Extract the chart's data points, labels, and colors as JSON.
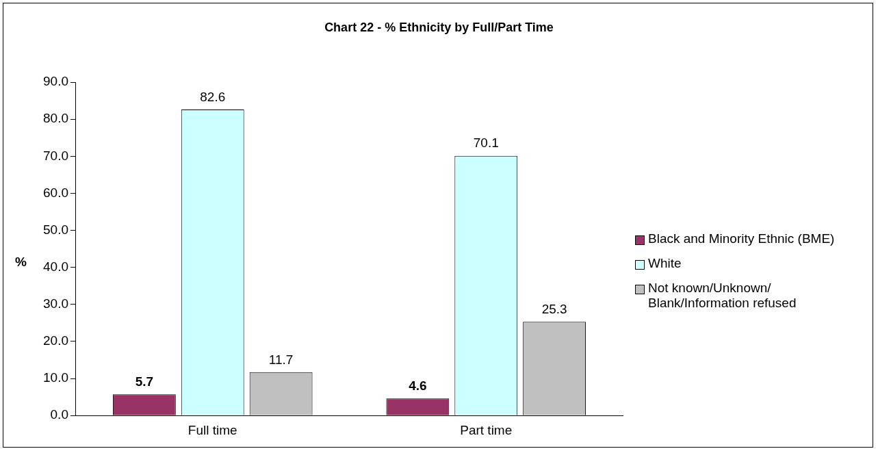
{
  "chart_data": {
    "type": "bar",
    "title": "Chart 22 - % Ethnicity by Full/Part Time",
    "ylabel": "%",
    "categories": [
      "Full time",
      "Part time"
    ],
    "series": [
      {
        "name": "Black and Minority Ethnic (BME)",
        "color": "#993366",
        "values": [
          5.7,
          4.6
        ]
      },
      {
        "name": "White",
        "color": "#ccffff",
        "values": [
          82.6,
          70.1
        ]
      },
      {
        "name": "Not known/Unknown/ Blank/Information refused",
        "color": "#c0c0c0",
        "values": [
          11.7,
          25.3
        ]
      }
    ],
    "ylim": [
      0,
      90
    ],
    "yticks": [
      {
        "value": 0,
        "label": "0.0"
      },
      {
        "value": 10,
        "label": "10.0"
      },
      {
        "value": 20,
        "label": "20.0"
      },
      {
        "value": 30,
        "label": "30.0"
      },
      {
        "value": 40,
        "label": "40.0"
      },
      {
        "value": 50,
        "label": "50.0"
      },
      {
        "value": 60,
        "label": "60.0"
      },
      {
        "value": 70,
        "label": "70.0"
      },
      {
        "value": 80,
        "label": "80.0"
      },
      {
        "value": 90,
        "label": "90.0"
      }
    ],
    "grid": false,
    "legend": "right",
    "data_labels": true
  }
}
